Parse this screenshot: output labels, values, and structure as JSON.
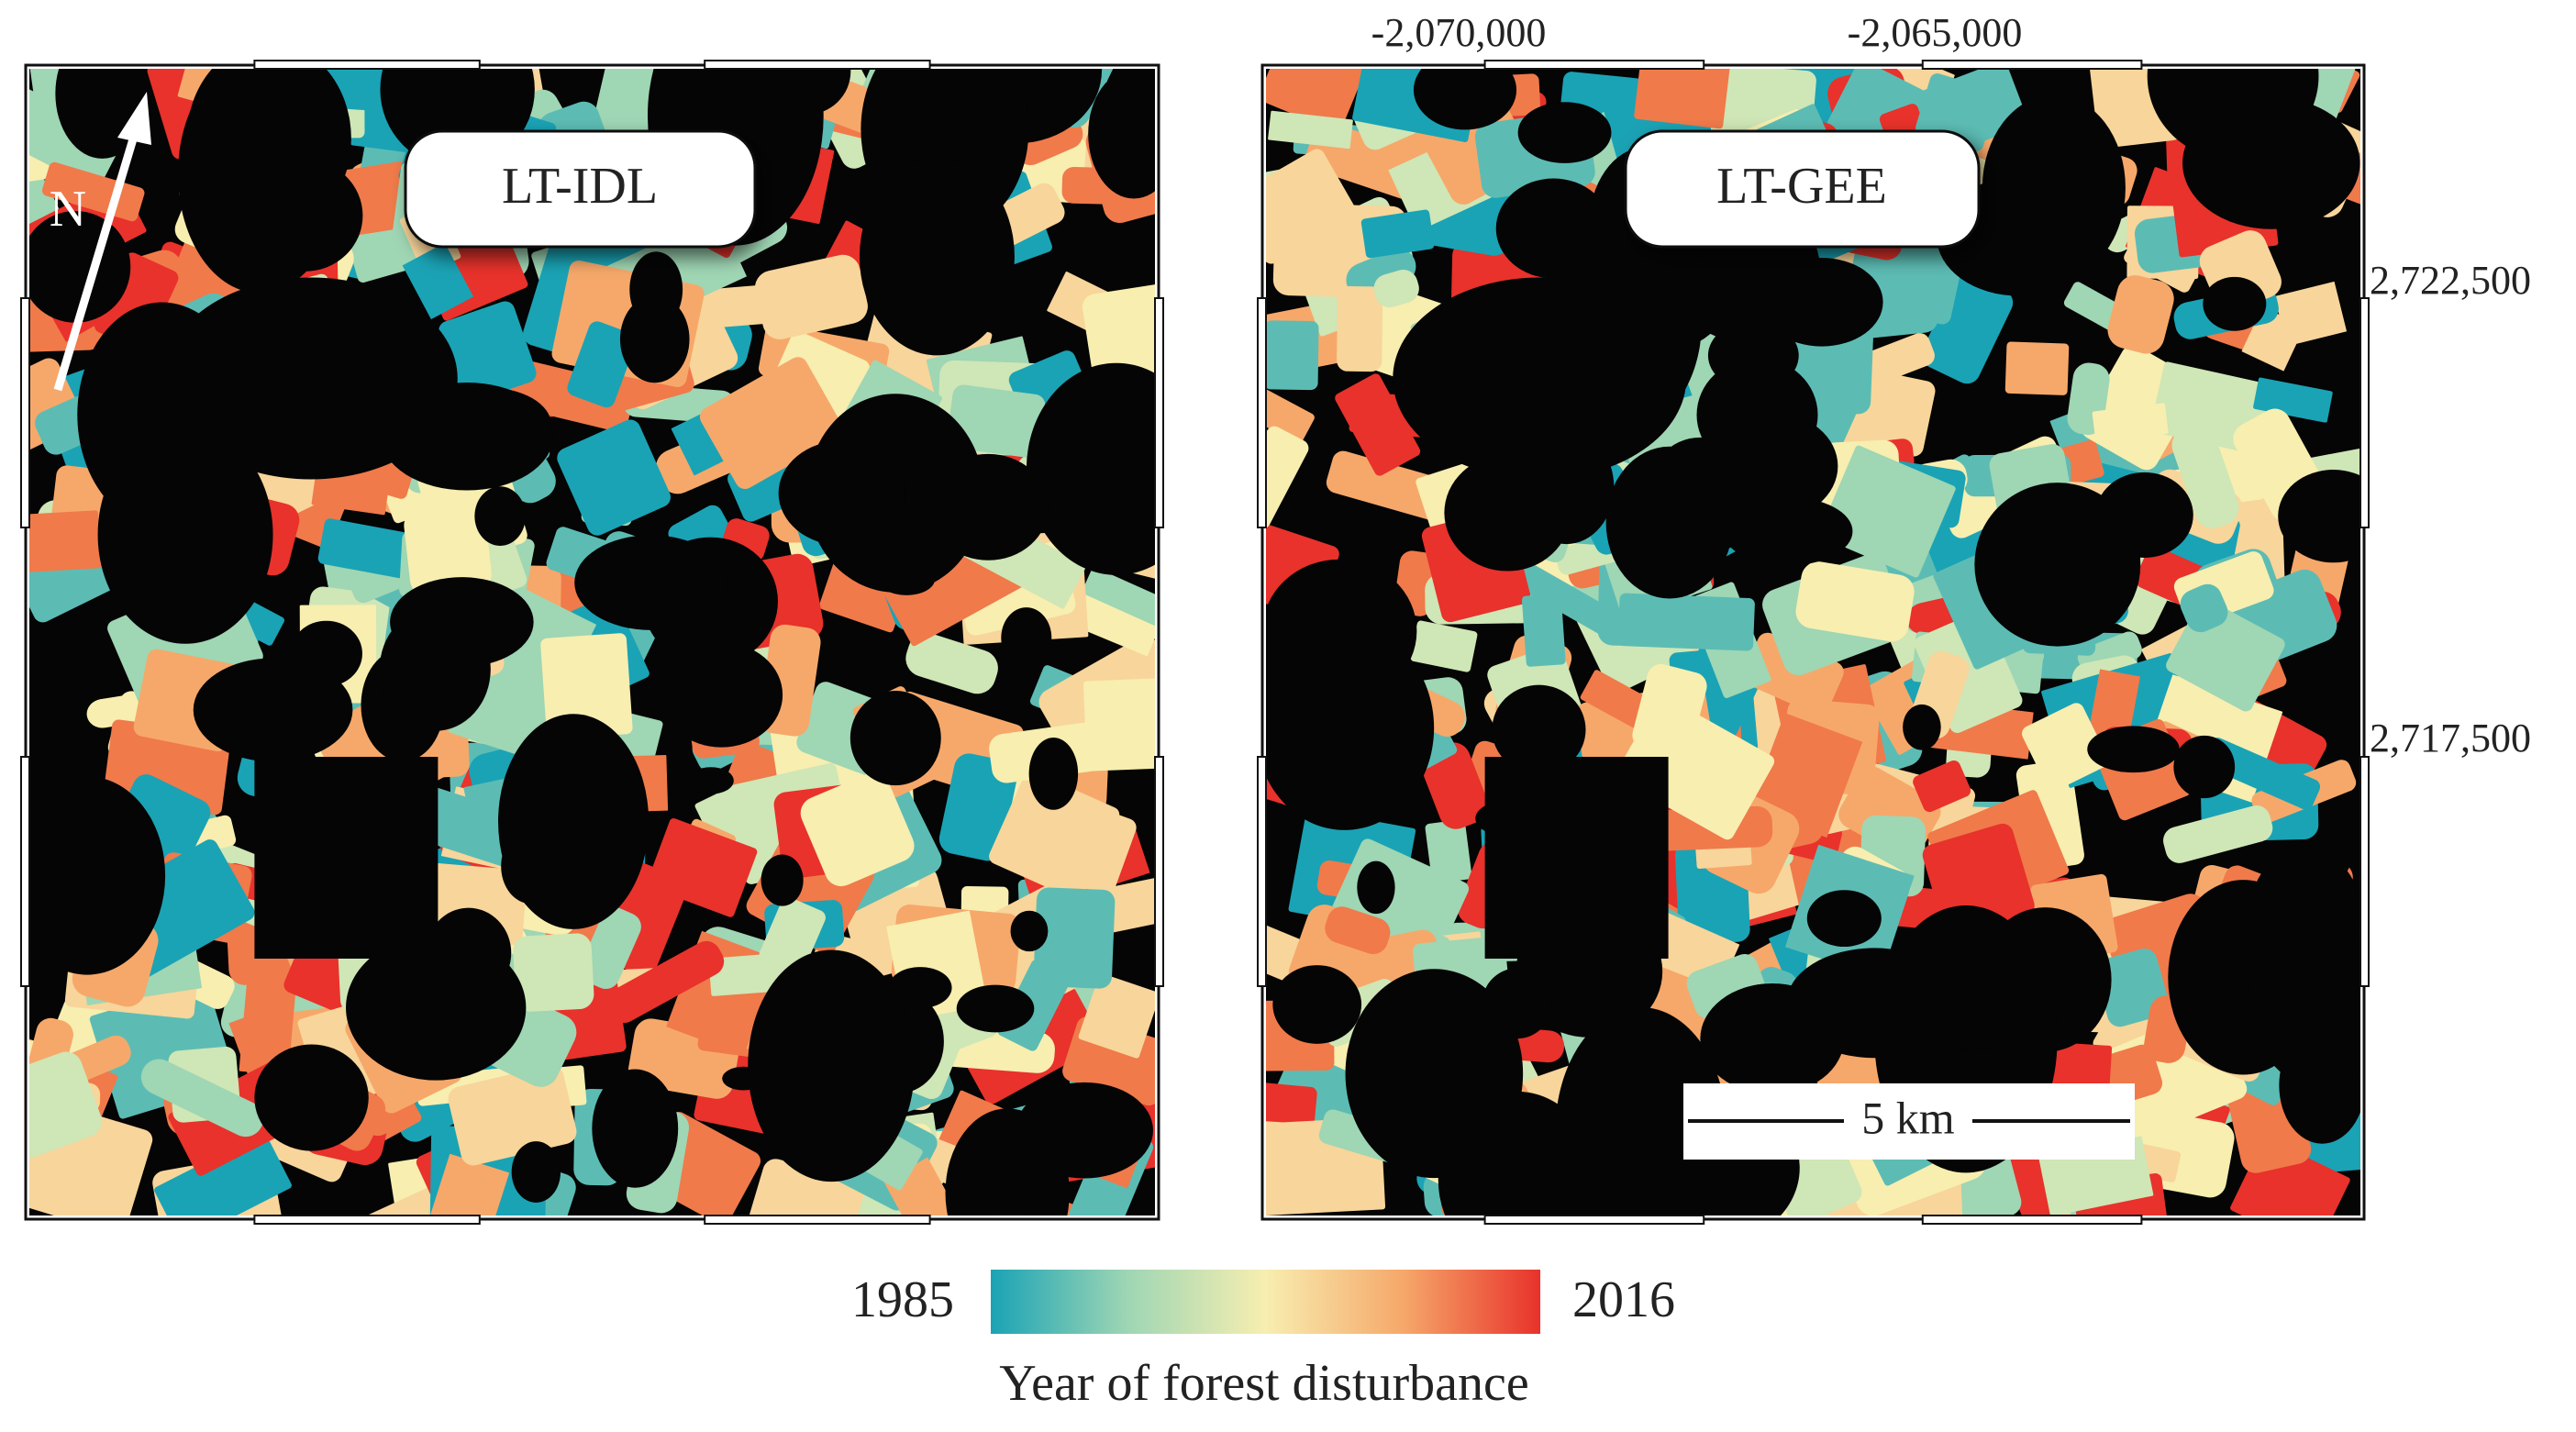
{
  "panels": [
    {
      "label": "LT-IDL"
    },
    {
      "label": "LT-GEE"
    }
  ],
  "north_label": "N",
  "x_coordinates": [
    "-2,070,000",
    "-2,065,000"
  ],
  "y_coordinates": [
    "2,722,500",
    "2,717,500"
  ],
  "scale_bar": "5 km",
  "colorbar": {
    "min": 1985,
    "max": 2016,
    "title": "Year of forest disturbance"
  }
}
